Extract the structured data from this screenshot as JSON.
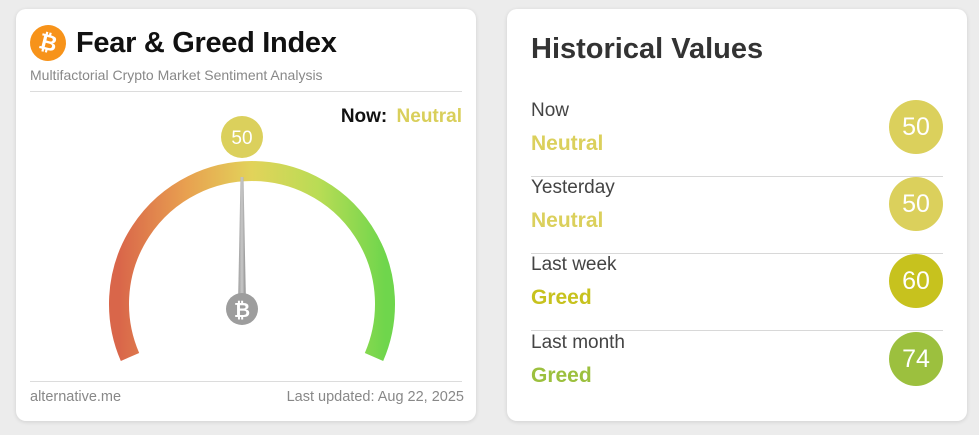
{
  "fear_greed": {
    "title": "Fear & Greed Index",
    "subtitle": "Multifactorial Crypto Market Sentiment Analysis",
    "logo_icon": "bitcoin-icon",
    "now_label": "Now:",
    "now_value": "Neutral",
    "now_color": "#d9cf5b",
    "value": "50",
    "value_fraction": 0.5,
    "footer_left": "alternative.me",
    "footer_right": "Last updated: Aug 22, 2025"
  },
  "historical": {
    "title": "Historical Values",
    "rows": [
      {
        "period": "Now",
        "label": "Neutral",
        "value": "50",
        "color": "#dbd05c"
      },
      {
        "period": "Yesterday",
        "label": "Neutral",
        "value": "50",
        "color": "#dbd05c"
      },
      {
        "period": "Last week",
        "label": "Greed",
        "value": "60",
        "color": "#c7c21e"
      },
      {
        "period": "Last month",
        "label": "Greed",
        "value": "74",
        "color": "#9cc03e"
      }
    ]
  }
}
